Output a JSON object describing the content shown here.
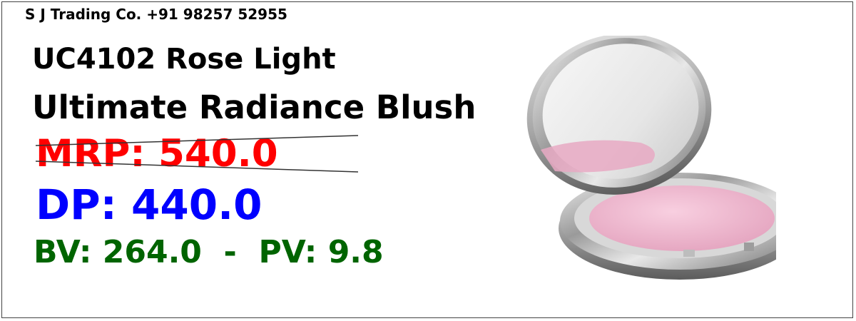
{
  "seller": {
    "name_phone": "S J Trading Co. +91 98257 52955"
  },
  "product": {
    "code_shade": "UC4102 Rose Light",
    "name": "Ultimate Radiance Blush",
    "image_icon": "blush-compact-icon"
  },
  "pricing": {
    "mrp": "MRP: 540.0",
    "dp": "DP: 440.0",
    "bv_pv": "BV: 264.0  -  PV: 9.8"
  },
  "colors": {
    "mrp": "#ff0000",
    "dp": "#0000ff",
    "bv_pv": "#006400",
    "blush": "#f2b8cc"
  }
}
